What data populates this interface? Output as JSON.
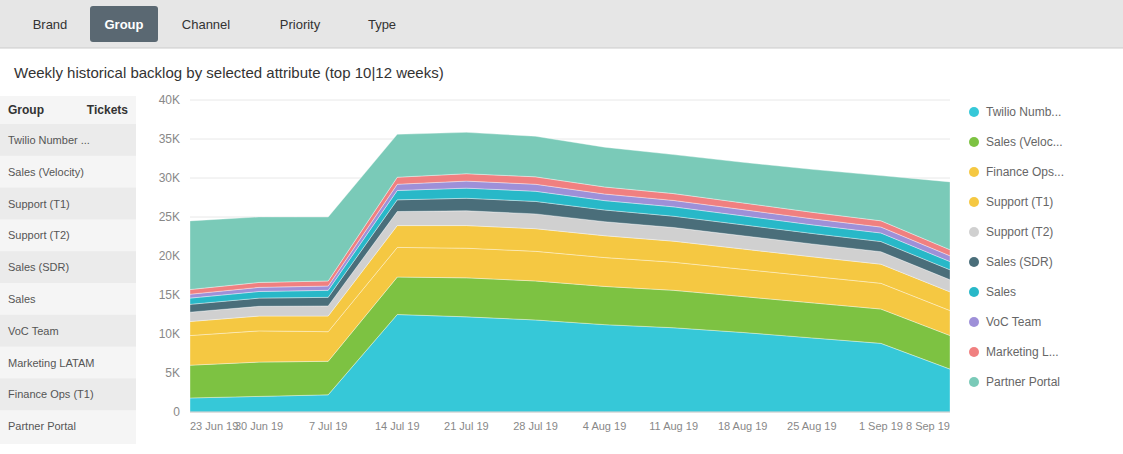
{
  "tabs": {
    "labels": [
      "Brand",
      "Group",
      "Channel",
      "Priority",
      "Type"
    ],
    "active": "Group"
  },
  "table": {
    "columns": [
      "Group",
      "Tickets"
    ],
    "rows": [
      "Twilio Number ...",
      "Sales (Velocity)",
      "Support (T1)",
      "Support (T2)",
      "Sales (SDR)",
      "Sales",
      "VoC Team",
      "Marketing LATAM",
      "Finance Ops (T1)",
      "Partner Portal"
    ]
  },
  "chart_data": {
    "type": "area",
    "stacked": true,
    "grid": true,
    "title": "Weekly historical backlog by selected attribute (top 10|12 weeks)",
    "categories": [
      "23 Jun 19",
      "30 Jun 19",
      "7 Jul 19",
      "14 Jul 19",
      "21 Jul 19",
      "28 Jul 19",
      "4 Aug 19",
      "11 Aug 19",
      "18 Aug 19",
      "25 Aug 19",
      "1 Sep 19",
      "8 Sep 19"
    ],
    "ylim": [
      0,
      40000
    ],
    "yticks": [
      0,
      {
        "value": 5000,
        "label": "5K"
      },
      {
        "value": 10000,
        "label": "10K"
      },
      {
        "value": 15000,
        "label": "15K"
      },
      {
        "value": 20000,
        "label": "20K"
      },
      {
        "value": 25000,
        "label": "25K"
      },
      {
        "value": 30000,
        "label": "30K"
      },
      {
        "value": 35000,
        "label": "35K"
      },
      {
        "value": 40000,
        "label": "40K"
      }
    ],
    "series": [
      {
        "name": "Twilio Numb...",
        "color": "#36C8D8",
        "values": [
          1800,
          2000,
          2200,
          12500,
          12200,
          11800,
          11200,
          10800,
          10200,
          9500,
          8800,
          5500
        ]
      },
      {
        "name": "Sales (Veloc...",
        "color": "#7DC242",
        "values": [
          4200,
          4400,
          4300,
          4800,
          5000,
          5000,
          4900,
          4800,
          4600,
          4500,
          4400,
          4300
        ]
      },
      {
        "name": "Finance Ops...",
        "color": "#F5C842",
        "values": [
          3800,
          4000,
          3800,
          3800,
          3800,
          3800,
          3700,
          3600,
          3500,
          3400,
          3300,
          3200
        ]
      },
      {
        "name": "Support (T1)",
        "color": "#F5C842",
        "values": [
          1800,
          1900,
          2000,
          2800,
          2900,
          2900,
          2800,
          2700,
          2600,
          2500,
          2450,
          2400
        ]
      },
      {
        "name": "Support (T2)",
        "color": "#D0D0D0",
        "values": [
          1200,
          1250,
          1300,
          1800,
          1900,
          1900,
          1800,
          1750,
          1700,
          1650,
          1600,
          1550
        ]
      },
      {
        "name": "Sales (SDR)",
        "color": "#4A6E7A",
        "values": [
          1000,
          1050,
          1100,
          1500,
          1600,
          1600,
          1500,
          1450,
          1400,
          1350,
          1300,
          1280
        ]
      },
      {
        "name": "Sales",
        "color": "#28B8C8",
        "values": [
          800,
          850,
          900,
          1200,
          1300,
          1300,
          1200,
          1200,
          1150,
          1100,
          1100,
          1050
        ]
      },
      {
        "name": "VoC Team",
        "color": "#9E90D8",
        "values": [
          500,
          530,
          550,
          800,
          900,
          900,
          850,
          820,
          800,
          780,
          760,
          740
        ]
      },
      {
        "name": "Marketing L...",
        "color": "#F08080",
        "values": [
          600,
          630,
          650,
          900,
          950,
          950,
          900,
          880,
          860,
          830,
          800,
          780
        ]
      },
      {
        "name": "Partner Portal",
        "color": "#7ACAB8",
        "values": [
          8800,
          8400,
          8200,
          5500,
          5300,
          5200,
          5100,
          5000,
          5200,
          5500,
          5800,
          8700
        ]
      }
    ]
  }
}
